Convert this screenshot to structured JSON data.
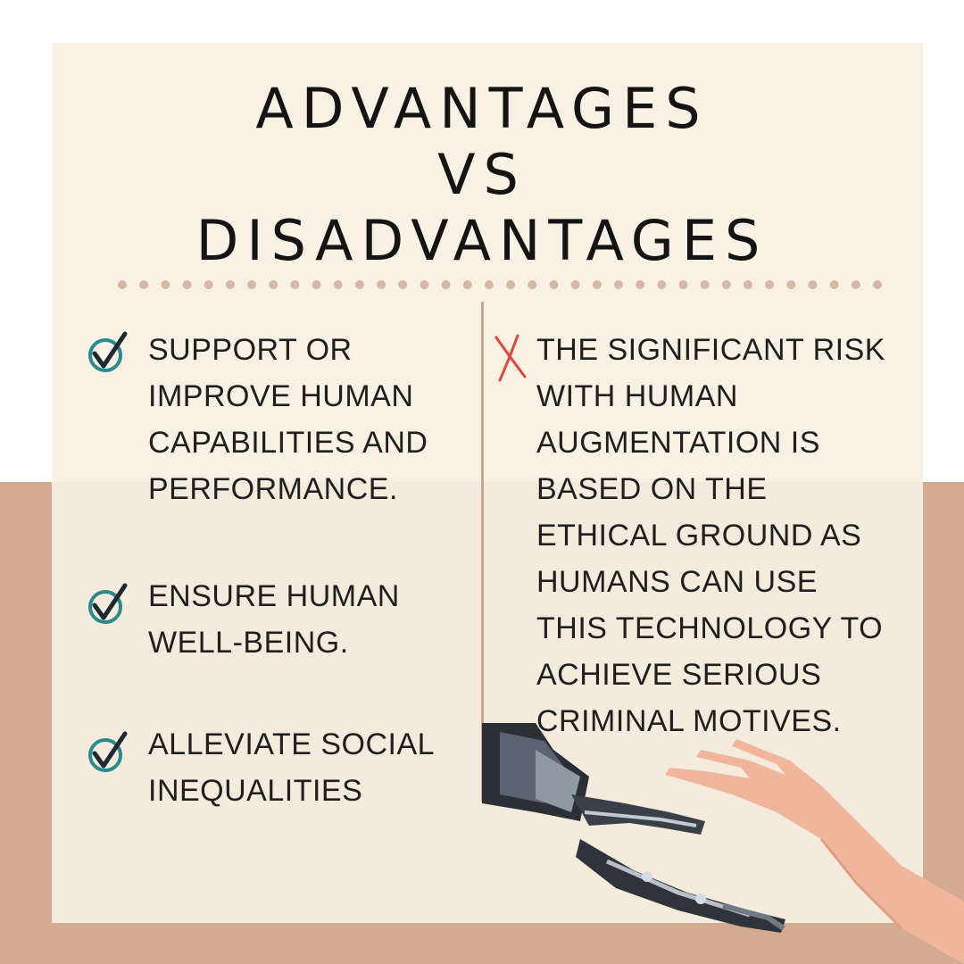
{
  "title": {
    "line1": "ADVANTAGES",
    "line2": "VS",
    "line3": "DISADVANTAGES"
  },
  "advantages": [
    {
      "text": "SUPPORT OR\nIMPROVE HUMAN\nCAPABILITIES AND\nPERFORMANCE."
    },
    {
      "text": "ENSURE HUMAN\nWELL-BEING."
    },
    {
      "text": "ALLEVIATE SOCIAL\nINEQUALITIES"
    }
  ],
  "disadvantages": [
    {
      "text": "THE SIGNIFICANT RISK\nWITH HUMAN\nAUGMENTATION IS\nBASED  ON THE\nETHICAL GROUND AS\nHUMANS CAN USE\nTHIS TECHNOLOGY TO\nACHIEVE SERIOUS\nCRIMINAL MOTIVES."
    }
  ],
  "icons": {
    "advantage": "check-circle-icon",
    "disadvantage": "x-mark-icon"
  },
  "colors": {
    "card": "#f7f0e2",
    "background_bottom": "#d2ab92",
    "check": "#2a8a8c",
    "check_mark": "#1c2b33",
    "x_mark": "#e0473a",
    "dots": "#d6b9a5",
    "divider": "#caa38b"
  }
}
